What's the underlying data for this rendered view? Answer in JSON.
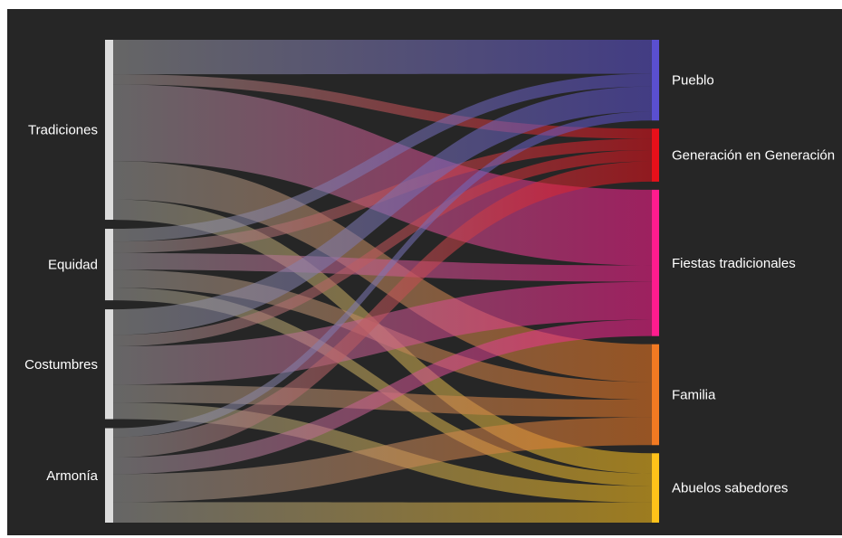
{
  "chart_data": {
    "type": "sankey",
    "title": "",
    "sources": [
      {
        "name": "Tradiciones",
        "color": "#dcdcdc"
      },
      {
        "name": "Equidad",
        "color": "#dcdcdc"
      },
      {
        "name": "Costumbres",
        "color": "#dcdcdc"
      },
      {
        "name": "Armonía",
        "color": "#dcdcdc"
      }
    ],
    "targets": [
      {
        "name": "Pueblo",
        "color": "#5a4fd0"
      },
      {
        "name": "Generación en Generación",
        "color": "#e8101a"
      },
      {
        "name": "Fiestas tradicionales",
        "color": "#ff1c8e"
      },
      {
        "name": "Familia",
        "color": "#f27a22"
      },
      {
        "name": "Abuelos sabedores",
        "color": "#ffc21a"
      }
    ],
    "links": [
      {
        "source": "Tradiciones",
        "target": "Pueblo",
        "value": 27
      },
      {
        "source": "Tradiciones",
        "target": "Generación en Generación",
        "value": 8
      },
      {
        "source": "Tradiciones",
        "target": "Fiestas tradicionales",
        "value": 60
      },
      {
        "source": "Tradiciones",
        "target": "Familia",
        "value": 30
      },
      {
        "source": "Tradiciones",
        "target": "Abuelos sabedores",
        "value": 16
      },
      {
        "source": "Equidad",
        "target": "Pueblo",
        "value": 10
      },
      {
        "source": "Equidad",
        "target": "Generación en Generación",
        "value": 9
      },
      {
        "source": "Equidad",
        "target": "Fiestas tradicionales",
        "value": 13
      },
      {
        "source": "Equidad",
        "target": "Familia",
        "value": 14
      },
      {
        "source": "Equidad",
        "target": "Abuelos sabedores",
        "value": 10
      },
      {
        "source": "Costumbres",
        "target": "Pueblo",
        "value": 20
      },
      {
        "source": "Costumbres",
        "target": "Generación en Generación",
        "value": 9
      },
      {
        "source": "Costumbres",
        "target": "Fiestas tradicionales",
        "value": 30
      },
      {
        "source": "Costumbres",
        "target": "Familia",
        "value": 14
      },
      {
        "source": "Costumbres",
        "target": "Abuelos sabedores",
        "value": 13
      },
      {
        "source": "Armonía",
        "target": "Pueblo",
        "value": 7
      },
      {
        "source": "Armonía",
        "target": "Generación en Generación",
        "value": 16
      },
      {
        "source": "Armonía",
        "target": "Fiestas tradicionales",
        "value": 13
      },
      {
        "source": "Armonía",
        "target": "Familia",
        "value": 22
      },
      {
        "source": "Armonía",
        "target": "Abuelos sabedores",
        "value": 16
      }
    ]
  }
}
